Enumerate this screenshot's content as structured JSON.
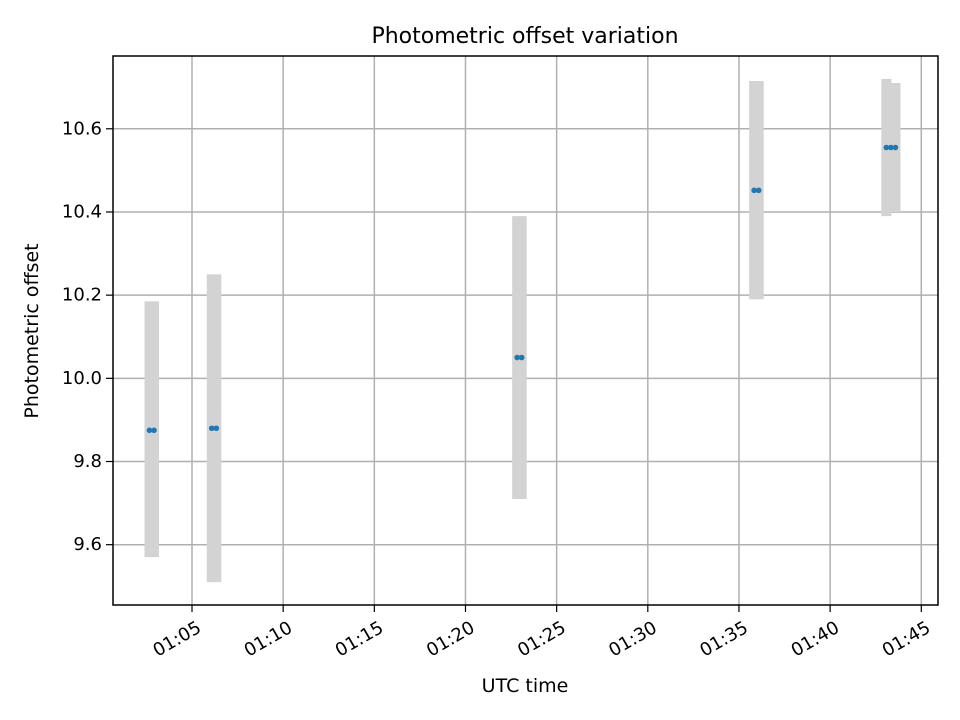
{
  "chart_data": {
    "type": "scatter",
    "title": "Photometric offset variation",
    "xlabel": "UTC time",
    "ylabel": "Photometric offset",
    "grid": true,
    "x_ticks": [
      "01:05",
      "01:10",
      "01:15",
      "01:20",
      "01:25",
      "01:30",
      "01:35",
      "01:40",
      "01:45"
    ],
    "y_ticks": [
      "9.6",
      "9.8",
      "10.0",
      "10.2",
      "10.4",
      "10.6"
    ],
    "x_range": [
      "01:00:40",
      "01:45:55"
    ],
    "ylim": [
      9.455,
      10.775
    ],
    "colors": {
      "points": "#1f77b4",
      "errorbars": "#d3d3d3",
      "grid": "#b0b0b0"
    },
    "series": [
      {
        "points": [
          {
            "x": "01:02:40",
            "y": 9.875,
            "low": 9.57,
            "high": 10.185
          },
          {
            "x": "01:02:55",
            "y": 9.875,
            "low": 9.57,
            "high": 10.185
          },
          {
            "x": "01:06:05",
            "y": 9.88,
            "low": 9.51,
            "high": 10.25
          },
          {
            "x": "01:06:20",
            "y": 9.88,
            "low": 9.51,
            "high": 10.25
          },
          {
            "x": "01:22:50",
            "y": 10.05,
            "low": 9.71,
            "high": 10.39
          },
          {
            "x": "01:23:05",
            "y": 10.05,
            "low": 9.71,
            "high": 10.39
          },
          {
            "x": "01:35:50",
            "y": 10.452,
            "low": 10.19,
            "high": 10.715
          },
          {
            "x": "01:36:05",
            "y": 10.452,
            "low": 10.19,
            "high": 10.715
          },
          {
            "x": "01:43:05",
            "y": 10.555,
            "low": 10.39,
            "high": 10.72
          },
          {
            "x": "01:43:20",
            "y": 10.555,
            "low": 10.4,
            "high": 10.71
          },
          {
            "x": "01:43:35",
            "y": 10.555,
            "low": 10.4,
            "high": 10.71
          }
        ]
      }
    ]
  }
}
